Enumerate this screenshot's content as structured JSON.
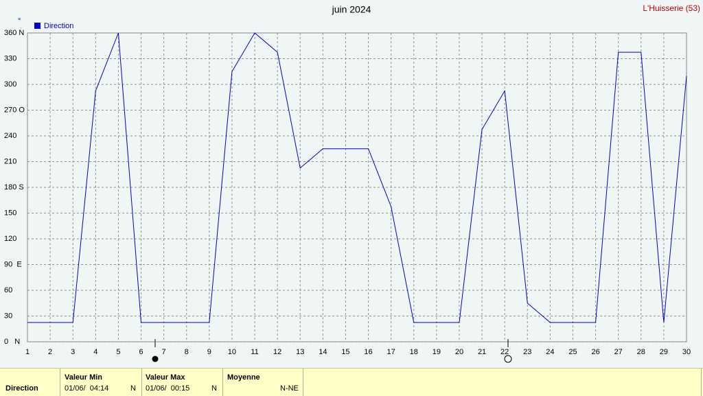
{
  "chart_data": {
    "type": "line",
    "title": "juin 2024",
    "station": "L'Huisserie (53)",
    "unit": "°",
    "x": [
      1,
      2,
      3,
      4,
      5,
      6,
      7,
      8,
      9,
      10,
      11,
      12,
      13,
      14,
      15,
      16,
      17,
      18,
      19,
      20,
      21,
      22,
      23,
      24,
      25,
      26,
      27,
      28,
      29,
      30
    ],
    "series": [
      {
        "name": "Direction",
        "color": "#0000c8",
        "values": [
          22.5,
          22.5,
          22.5,
          292.5,
          360,
          22.5,
          22.5,
          22.5,
          22.5,
          315,
          360,
          337.5,
          202.5,
          225,
          225,
          225,
          157.5,
          22.5,
          22.5,
          22.5,
          247.5,
          292.5,
          45,
          22.5,
          22.5,
          22.5,
          337.5,
          337.5,
          22.5,
          310
        ]
      }
    ],
    "xlim": [
      1,
      30
    ],
    "xticks": [
      1,
      2,
      3,
      4,
      5,
      6,
      7,
      8,
      9,
      10,
      11,
      12,
      13,
      14,
      15,
      16,
      17,
      18,
      19,
      20,
      21,
      22,
      23,
      24,
      25,
      26,
      27,
      28,
      29,
      30
    ],
    "ylim": [
      0,
      360
    ],
    "yticks": [
      {
        "value": 0,
        "label": "0   N"
      },
      30,
      60,
      {
        "value": 90,
        "label": "90  E"
      },
      120,
      150,
      {
        "value": 180,
        "label": "180 S"
      },
      210,
      240,
      {
        "value": 270,
        "label": "270 O"
      },
      300,
      330,
      {
        "value": 360,
        "label": "360 N"
      }
    ],
    "grid": true
  },
  "summary": {
    "row_label": "Direction",
    "min": {
      "header": "Valeur Min",
      "date": "01/06/  04:14",
      "dir": "N"
    },
    "max": {
      "header": "Valeur Max",
      "date": "01/06/  00:15",
      "dir": "N"
    },
    "mean": {
      "header": "Moyenne",
      "value": "N-NE"
    }
  }
}
